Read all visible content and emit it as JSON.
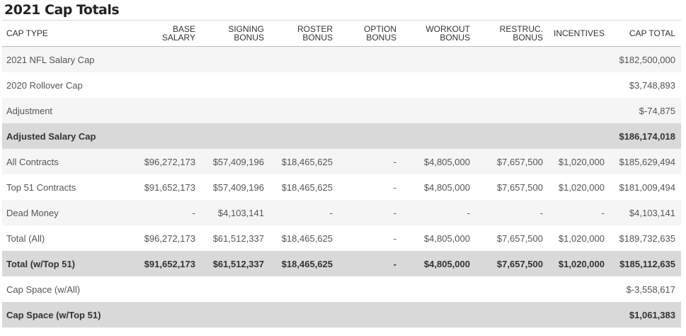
{
  "title": "2021 Cap Totals",
  "columns": [
    "CAP TYPE",
    "BASE\nSALARY",
    "SIGNING\nBONUS",
    "ROSTER\nBONUS",
    "OPTION\nBONUS",
    "WORKOUT\nBONUS",
    "RESTRUC.\nBONUS",
    "INCENTIVES",
    "CAP TOTAL"
  ],
  "rows": [
    {
      "highlight": false,
      "cells": [
        "2021 NFL Salary Cap",
        "",
        "",
        "",
        "",
        "",
        "",
        "",
        "$182,500,000"
      ]
    },
    {
      "highlight": false,
      "cells": [
        "2020 Rollover Cap",
        "",
        "",
        "",
        "",
        "",
        "",
        "",
        "$3,748,893"
      ]
    },
    {
      "highlight": false,
      "cells": [
        "Adjustment",
        "",
        "",
        "",
        "",
        "",
        "",
        "",
        "$-74,875"
      ]
    },
    {
      "highlight": true,
      "cells": [
        "Adjusted Salary Cap",
        "",
        "",
        "",
        "",
        "",
        "",
        "",
        "$186,174,018"
      ]
    },
    {
      "highlight": false,
      "cells": [
        "All Contracts",
        "$96,272,173",
        "$57,409,196",
        "$18,465,625",
        "-",
        "$4,805,000",
        "$7,657,500",
        "$1,020,000",
        "$185,629,494"
      ]
    },
    {
      "highlight": false,
      "cells": [
        "Top 51 Contracts",
        "$91,652,173",
        "$57,409,196",
        "$18,465,625",
        "-",
        "$4,805,000",
        "$7,657,500",
        "$1,020,000",
        "$181,009,494"
      ]
    },
    {
      "highlight": false,
      "cells": [
        "Dead Money",
        "-",
        "$4,103,141",
        "-",
        "-",
        "-",
        "-",
        "-",
        "$4,103,141"
      ]
    },
    {
      "highlight": false,
      "cells": [
        "Total (All)",
        "$96,272,173",
        "$61,512,337",
        "$18,465,625",
        "-",
        "$4,805,000",
        "$7,657,500",
        "$1,020,000",
        "$189,732,635"
      ]
    },
    {
      "highlight": true,
      "cells": [
        "Total (w/Top 51)",
        "$91,652,173",
        "$61,512,337",
        "$18,465,625",
        "-",
        "$4,805,000",
        "$7,657,500",
        "$1,020,000",
        "$185,112,635"
      ]
    },
    {
      "highlight": false,
      "cells": [
        "Cap Space (w/All)",
        "",
        "",
        "",
        "",
        "",
        "",
        "",
        "$-3,558,617"
      ]
    },
    {
      "highlight": true,
      "cells": [
        "Cap Space (w/Top 51)",
        "",
        "",
        "",
        "",
        "",
        "",
        "",
        "$1,061,383"
      ]
    }
  ]
}
